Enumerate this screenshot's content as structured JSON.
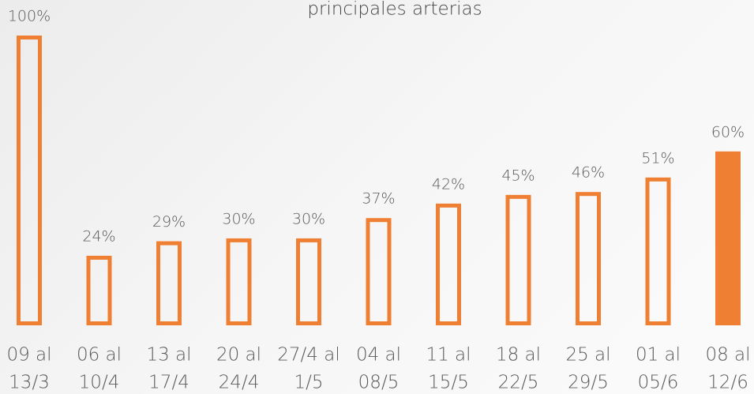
{
  "chart_data": {
    "type": "bar",
    "title": "principales arterias",
    "categories": [
      [
        "09 al",
        "13/3"
      ],
      [
        "06 al",
        "10/4"
      ],
      [
        "13 al",
        "17/4"
      ],
      [
        "20 al",
        "24/4"
      ],
      [
        "27/4 al",
        "1/5"
      ],
      [
        "04 al",
        "08/5"
      ],
      [
        "11 al",
        "15/5"
      ],
      [
        "18 al",
        "22/5"
      ],
      [
        "25 al",
        "29/5"
      ],
      [
        "01 al",
        "05/6"
      ],
      [
        "08 al",
        "12/6"
      ]
    ],
    "values": [
      100,
      24,
      29,
      30,
      30,
      37,
      42,
      45,
      46,
      51,
      60
    ],
    "value_labels": [
      "100%",
      "24%",
      "29%",
      "30%",
      "30%",
      "37%",
      "42%",
      "45%",
      "46%",
      "51%",
      "60%"
    ],
    "filled": [
      false,
      false,
      false,
      false,
      false,
      false,
      false,
      false,
      false,
      false,
      true
    ],
    "color": "#ef7f32",
    "ylim": [
      0,
      100
    ]
  }
}
